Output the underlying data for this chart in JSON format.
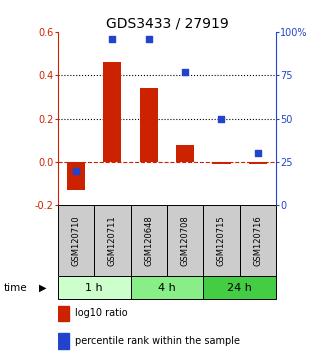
{
  "title": "GDS3433 / 27919",
  "samples": [
    "GSM120710",
    "GSM120711",
    "GSM120648",
    "GSM120708",
    "GSM120715",
    "GSM120716"
  ],
  "log10_ratio": [
    -0.13,
    0.46,
    0.34,
    0.08,
    -0.01,
    -0.01
  ],
  "percentile_rank": [
    20,
    96,
    96,
    77,
    50,
    30
  ],
  "bar_color": "#cc2200",
  "dot_color": "#2244cc",
  "left_ylim": [
    -0.2,
    0.6
  ],
  "right_ylim": [
    0,
    100
  ],
  "left_yticks": [
    -0.2,
    0.0,
    0.2,
    0.4,
    0.6
  ],
  "right_yticks": [
    0,
    25,
    50,
    75,
    100
  ],
  "right_yticklabels": [
    "0",
    "25",
    "50",
    "75",
    "100%"
  ],
  "hline_dotted": [
    0.2,
    0.4
  ],
  "hline_dashed": 0.0,
  "time_groups": [
    {
      "label": "1 h",
      "start": 0,
      "end": 2,
      "color": "#ccffcc"
    },
    {
      "label": "4 h",
      "start": 2,
      "end": 4,
      "color": "#88ee88"
    },
    {
      "label": "24 h",
      "start": 4,
      "end": 6,
      "color": "#44cc44"
    }
  ],
  "legend_bar_label": "log10 ratio",
  "legend_dot_label": "percentile rank within the sample",
  "time_label": "time",
  "bg_plot": "#ffffff",
  "bg_sample_box": "#cccccc",
  "title_fontsize": 10,
  "tick_fontsize": 7,
  "label_fontsize": 7.5
}
